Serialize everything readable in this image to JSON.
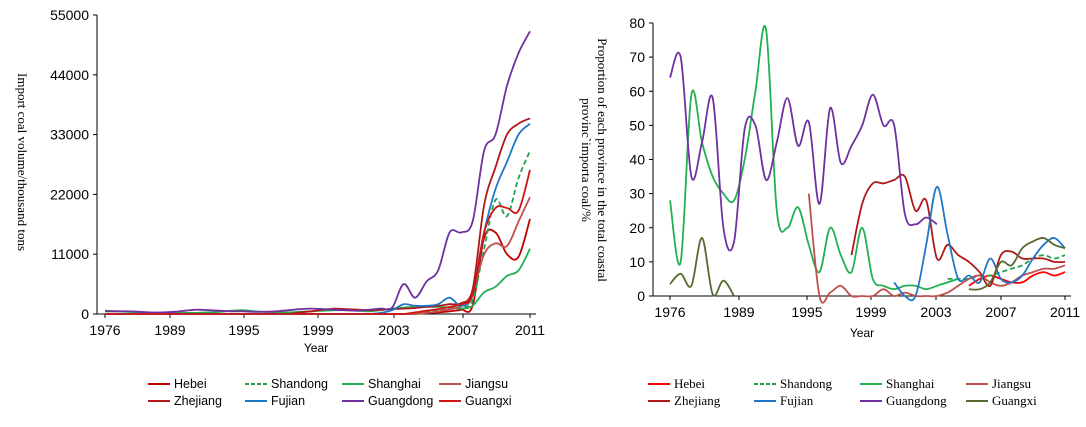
{
  "chart_data": [
    {
      "type": "line",
      "title": "",
      "xlabel": "Year",
      "ylabel": "Import coal volume/thousand  tons",
      "ylim": [
        0,
        55000
      ],
      "yticks": [
        0,
        11000,
        22000,
        33000,
        44000,
        55000
      ],
      "xticks": [
        "1976",
        "1989",
        "1995",
        "1999",
        "2003",
        "2007",
        "2011"
      ],
      "x": [
        "1976",
        "1977",
        "1978",
        "1979",
        "1980",
        "1981",
        "1982",
        "1983",
        "1984",
        "1985",
        "1986",
        "1987",
        "1988",
        "1989",
        "1990",
        "1991",
        "1992",
        "1993",
        "1994",
        "1995",
        "1996",
        "1997",
        "1998",
        "1999",
        "2000",
        "2001",
        "2002",
        "2003",
        "2004",
        "2005",
        "2006",
        "2007",
        "2008",
        "2009",
        "2010",
        "2011",
        "2012",
        "2013"
      ],
      "grid": false,
      "legend_placement": "bottom",
      "series": [
        {
          "name": "Hebei",
          "color": "#c00000",
          "dash": "none",
          "values": [
            0,
            0,
            0,
            0,
            0,
            0,
            0,
            0,
            0,
            0,
            0,
            0,
            0,
            0,
            0,
            0,
            0,
            0,
            0,
            0,
            0,
            0,
            0,
            0,
            0,
            0,
            0,
            0,
            200,
            300,
            500,
            800,
            1500,
            14000,
            15000,
            11000,
            10500,
            17500
          ]
        },
        {
          "name": "Shandong",
          "color": "#22a04b",
          "dash": "5,3",
          "values": [
            0,
            0,
            0,
            0,
            0,
            0,
            0,
            0,
            0,
            0,
            0,
            0,
            0,
            0,
            0,
            0,
            0,
            0,
            0,
            0,
            0,
            0,
            0,
            0,
            0,
            0,
            0,
            200,
            400,
            600,
            900,
            1200,
            2500,
            12000,
            21000,
            18000,
            25000,
            30000
          ]
        },
        {
          "name": "Shanghai",
          "color": "#22b050",
          "dash": "none",
          "values": [
            600,
            500,
            400,
            300,
            200,
            200,
            200,
            200,
            200,
            300,
            400,
            600,
            700,
            500,
            400,
            300,
            300,
            400,
            500,
            600,
            700,
            700,
            600,
            500,
            700,
            1000,
            1200,
            1300,
            1300,
            1300,
            1200,
            1000,
            1500,
            4000,
            5000,
            7000,
            8000,
            12000
          ]
        },
        {
          "name": "Jiangsu",
          "color": "#c0504d",
          "dash": "none",
          "values": [
            0,
            0,
            0,
            0,
            0,
            0,
            0,
            0,
            0,
            0,
            0,
            0,
            0,
            0,
            0,
            0,
            0,
            0,
            0,
            0,
            0,
            0,
            0,
            0,
            0,
            0,
            0,
            0,
            200,
            500,
            900,
            1500,
            4000,
            11000,
            13000,
            12500,
            17000,
            21500
          ]
        },
        {
          "name": "Zhejiang",
          "color": "#b01818",
          "dash": "none",
          "values": [
            0,
            0,
            0,
            0,
            0,
            0,
            0,
            0,
            0,
            0,
            0,
            0,
            0,
            0,
            0,
            0,
            0,
            300,
            500,
            800,
            1000,
            900,
            800,
            700,
            800,
            900,
            1000,
            1100,
            1300,
            1500,
            1800,
            2000,
            4500,
            20000,
            27000,
            33000,
            35000,
            36000
          ]
        },
        {
          "name": "Fujian",
          "color": "#1f77c8",
          "dash": "none",
          "values": [
            0,
            0,
            0,
            0,
            0,
            0,
            0,
            0,
            0,
            0,
            0,
            0,
            0,
            0,
            0,
            0,
            0,
            0,
            0,
            0,
            0,
            0,
            0,
            0,
            200,
            700,
            1800,
            1500,
            1500,
            1800,
            3000,
            1500,
            3500,
            15000,
            23000,
            28000,
            33000,
            35000
          ]
        },
        {
          "name": "Guangdong",
          "color": "#7030a0",
          "dash": "none",
          "values": [
            500,
            500,
            500,
            400,
            300,
            300,
            400,
            600,
            800,
            700,
            600,
            500,
            500,
            400,
            400,
            500,
            700,
            900,
            1000,
            900,
            800,
            700,
            600,
            800,
            1000,
            1200,
            5500,
            3000,
            6000,
            8000,
            15000,
            15000,
            17000,
            30000,
            33000,
            42000,
            48000,
            52000
          ]
        },
        {
          "name": "Guangxi",
          "color": "#d01515",
          "dash": "none",
          "values": [
            0,
            0,
            0,
            0,
            0,
            0,
            0,
            0,
            0,
            0,
            0,
            0,
            0,
            0,
            0,
            0,
            0,
            0,
            0,
            0,
            0,
            0,
            0,
            0,
            0,
            0,
            0,
            300,
            600,
            900,
            1300,
            1800,
            3500,
            15000,
            19500,
            19500,
            19000,
            26500
          ]
        }
      ]
    },
    {
      "type": "line",
      "title": "",
      "xlabel": "Year",
      "ylabel": "Proportion of each province in the total coastal provinc`importa coal/%",
      "ylabel_line1": "Proportion of each province in the total coastal",
      "ylabel_line2": "provinc`importa coal/%",
      "ylim": [
        0,
        80
      ],
      "yticks": [
        0,
        10,
        20,
        30,
        40,
        50,
        60,
        70,
        80
      ],
      "xticks": [
        "1976",
        "1989",
        "1995",
        "1999",
        "2003",
        "2007",
        "2011"
      ],
      "x": [
        "1976",
        "1977",
        "1978",
        "1979",
        "1980",
        "1981",
        "1982",
        "1983",
        "1984",
        "1985",
        "1986",
        "1987",
        "1988",
        "1989",
        "1990",
        "1991",
        "1992",
        "1993",
        "1994",
        "1995",
        "1996",
        "1997",
        "1998",
        "1999",
        "2000",
        "2001",
        "2002",
        "2003",
        "2004",
        "2005",
        "2006",
        "2007",
        "2008",
        "2009",
        "2010",
        "2011",
        "2012",
        "2013"
      ],
      "grid": false,
      "legend_placement": "bottom",
      "series": [
        {
          "name": "Hebei",
          "color": "#ff0000",
          "dash": "none",
          "values": [
            null,
            null,
            null,
            null,
            null,
            null,
            null,
            null,
            null,
            null,
            null,
            null,
            null,
            null,
            null,
            null,
            null,
            null,
            null,
            null,
            null,
            null,
            null,
            null,
            null,
            null,
            null,
            null,
            3,
            5,
            6,
            5,
            4,
            4,
            6,
            7,
            6,
            7
          ]
        },
        {
          "name": "Shandong",
          "color": "#22a04b",
          "dash": "5,3",
          "values": [
            null,
            null,
            null,
            null,
            null,
            null,
            null,
            null,
            null,
            null,
            null,
            null,
            null,
            null,
            null,
            null,
            null,
            null,
            null,
            null,
            null,
            null,
            null,
            null,
            null,
            null,
            5,
            5,
            5,
            6,
            6,
            7,
            8,
            9,
            11,
            12,
            11,
            12
          ]
        },
        {
          "name": "Shanghai",
          "color": "#22b050",
          "dash": "none",
          "values": [
            28,
            10,
            59,
            45,
            35,
            30,
            28,
            40,
            60,
            78,
            25,
            20,
            26,
            15,
            7,
            20,
            12,
            7,
            20,
            5,
            3,
            2,
            3,
            3,
            2,
            3,
            4,
            5,
            null,
            null,
            null,
            null,
            null,
            null,
            null,
            null,
            null,
            null
          ]
        },
        {
          "name": "Jiangsu",
          "color": "#c0504d",
          "dash": "none",
          "values": [
            null,
            null,
            null,
            null,
            null,
            null,
            null,
            null,
            null,
            null,
            null,
            null,
            null,
            30,
            0,
            1,
            3,
            0,
            0,
            0,
            2,
            0,
            1,
            0,
            0,
            0,
            1,
            3,
            5,
            6,
            4,
            3,
            4,
            6,
            7,
            8,
            8,
            9
          ]
        },
        {
          "name": "Zhejiang",
          "color": "#b01818",
          "dash": "none",
          "values": [
            null,
            null,
            null,
            null,
            null,
            null,
            null,
            null,
            null,
            null,
            null,
            null,
            null,
            null,
            null,
            null,
            null,
            12,
            27,
            33,
            33,
            34,
            35,
            25,
            28,
            11,
            15,
            12,
            10,
            7,
            3,
            12,
            13,
            11,
            11,
            11,
            10,
            10
          ]
        },
        {
          "name": "Fujian",
          "color": "#1f77c8",
          "dash": "none",
          "values": [
            null,
            null,
            null,
            null,
            null,
            null,
            null,
            null,
            null,
            null,
            null,
            null,
            null,
            null,
            null,
            null,
            null,
            null,
            null,
            null,
            null,
            4,
            0,
            0,
            15,
            32,
            18,
            5,
            6,
            4,
            11,
            5,
            4,
            6,
            11,
            15,
            17,
            14
          ]
        },
        {
          "name": "Guangdong",
          "color": "#7030a0",
          "dash": "none",
          "values": [
            64,
            70,
            35,
            45,
            58,
            20,
            16,
            49,
            50,
            34,
            45,
            58,
            44,
            51,
            27,
            55,
            39,
            44,
            50,
            59,
            50,
            50,
            24,
            21,
            23,
            21,
            null,
            null,
            null,
            null,
            null,
            null,
            null,
            null,
            null,
            null,
            null,
            null
          ]
        },
        {
          "name": "Guangxi",
          "color": "#556b2f",
          "dash": "none",
          "values": [
            3.5,
            6.5,
            3,
            17,
            0.5,
            4.5,
            0,
            null,
            null,
            null,
            null,
            null,
            null,
            null,
            null,
            null,
            null,
            null,
            null,
            null,
            null,
            null,
            null,
            null,
            null,
            null,
            null,
            null,
            2,
            2,
            4,
            10,
            9,
            14,
            16,
            17,
            15,
            14
          ]
        }
      ]
    }
  ]
}
